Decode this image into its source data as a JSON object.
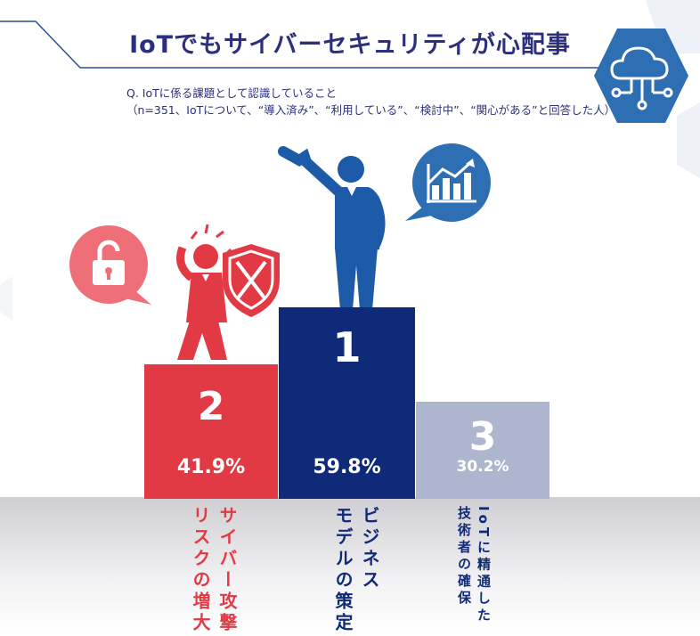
{
  "title": "IoTでもサイバーセキュリティが心配事",
  "question_line1": "Q. IoTに係る課題として認識していること",
  "question_line2": "（n=351、IoTについて、“導入済み”、“利用している”、“検討中”、“関心がある”と回答した人）",
  "colors": {
    "navy": "#0e2a79",
    "red": "#e23a45",
    "gray": "#aeb6cf",
    "pink": "#ef6f78",
    "blue": "#2e6fb4",
    "title": "#2b2f7e"
  },
  "chart_data": {
    "type": "bar",
    "order_shown": [
      "2",
      "1",
      "3"
    ],
    "categories": [
      "サイバー攻撃\nリスクの増大",
      "ビジネス\nモデルの策定",
      "IoTに精通した\n技術者の確保"
    ],
    "ranks": [
      "2",
      "1",
      "3"
    ],
    "values": [
      41.9,
      59.8,
      30.2
    ],
    "value_labels": [
      "41.9%",
      "59.8%",
      "30.2%"
    ]
  },
  "icons": [
    "cloud-network-icon",
    "unlock-icon",
    "growth-chart-icon",
    "shield-icon"
  ]
}
